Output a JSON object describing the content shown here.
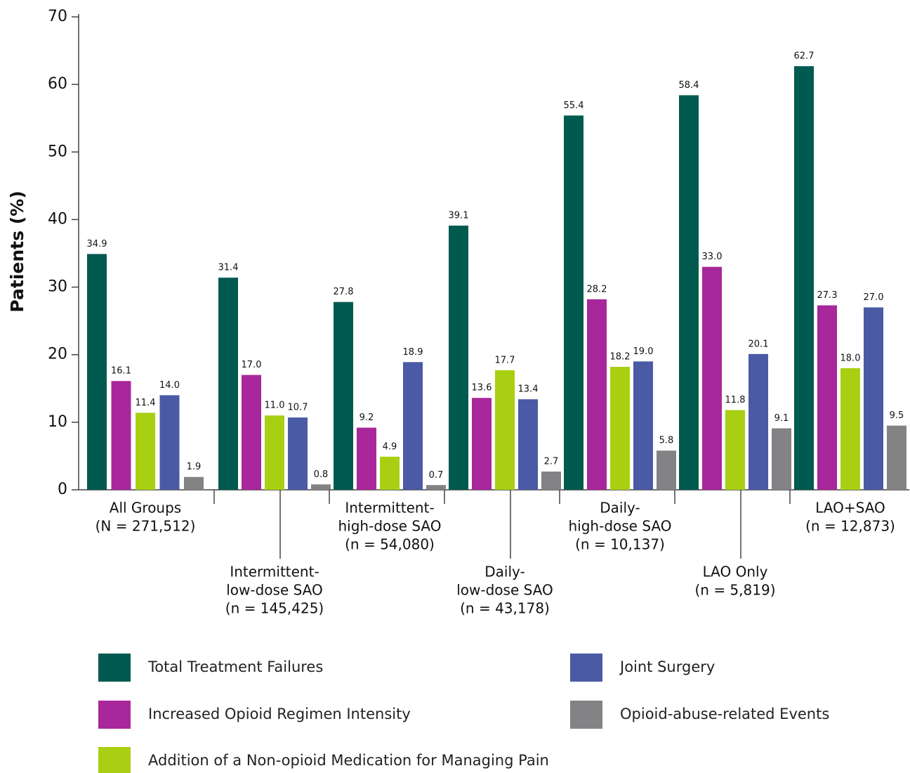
{
  "chart_data": {
    "type": "bar",
    "y_label": "Patients (%)",
    "categories": [
      [
        "All Groups",
        "(N = 271,512)"
      ],
      [
        "Intermittent-",
        "low-dose SAO",
        "(n = 145,425)"
      ],
      [
        "Intermittent-",
        "high-dose SAO",
        "(n = 54,080)"
      ],
      [
        "Daily-",
        "low-dose SAO",
        "(n = 43,178)"
      ],
      [
        "Daily-",
        "high-dose SAO",
        "(n = 10,137)"
      ],
      [
        "LAO Only",
        "(n = 5,819)"
      ],
      [
        "LAO+SAO",
        "(n = 12,873)"
      ]
    ],
    "series": [
      {
        "name": "Total Treatment Failures",
        "color": "#005a50",
        "values": [
          34.9,
          31.4,
          27.8,
          39.1,
          55.4,
          58.4,
          62.7
        ],
        "value_labels": [
          "34.9",
          "31.4",
          "27.8",
          "39.1",
          "55.4",
          "58.4",
          "62.7"
        ]
      },
      {
        "name": "Increased Opioid Regimen Intensity",
        "color": "#a8279a",
        "values": [
          16.1,
          17.0,
          9.2,
          13.6,
          28.2,
          33.0,
          27.3
        ],
        "value_labels": [
          "16.1",
          "17.0",
          "9.2",
          "13.6",
          "28.2",
          "33.0",
          "27.3"
        ]
      },
      {
        "name": "Addition of a Non-opioid Medication for Managing Pain",
        "color": "#a8cf12",
        "values": [
          11.4,
          11.0,
          4.9,
          17.7,
          18.2,
          11.8,
          18.0
        ],
        "value_labels": [
          "11.4",
          "11.0",
          "4.9",
          "17.7",
          "18.2",
          "11.8",
          "18.0"
        ]
      },
      {
        "name": "Joint Surgery",
        "color": "#4a5aa5",
        "values": [
          14.0,
          10.7,
          18.9,
          13.4,
          19.0,
          20.1,
          27.0
        ],
        "value_labels": [
          "14.0",
          "10.7",
          "18.9",
          "13.4",
          "19.0",
          "20.1",
          "27.0"
        ]
      },
      {
        "name": "Opioid-abuse-related Events",
        "color": "#838385",
        "values": [
          1.9,
          0.8,
          0.7,
          2.7,
          5.8,
          9.1,
          9.5
        ],
        "value_labels": [
          "1.9",
          "0.8",
          "0.7",
          "2.7",
          "5.8",
          "9.1",
          "9.5"
        ]
      }
    ],
    "ylim": [
      0,
      70
    ],
    "yticks": [
      0,
      10,
      20,
      30,
      40,
      50,
      60,
      70
    ],
    "grid": false
  }
}
